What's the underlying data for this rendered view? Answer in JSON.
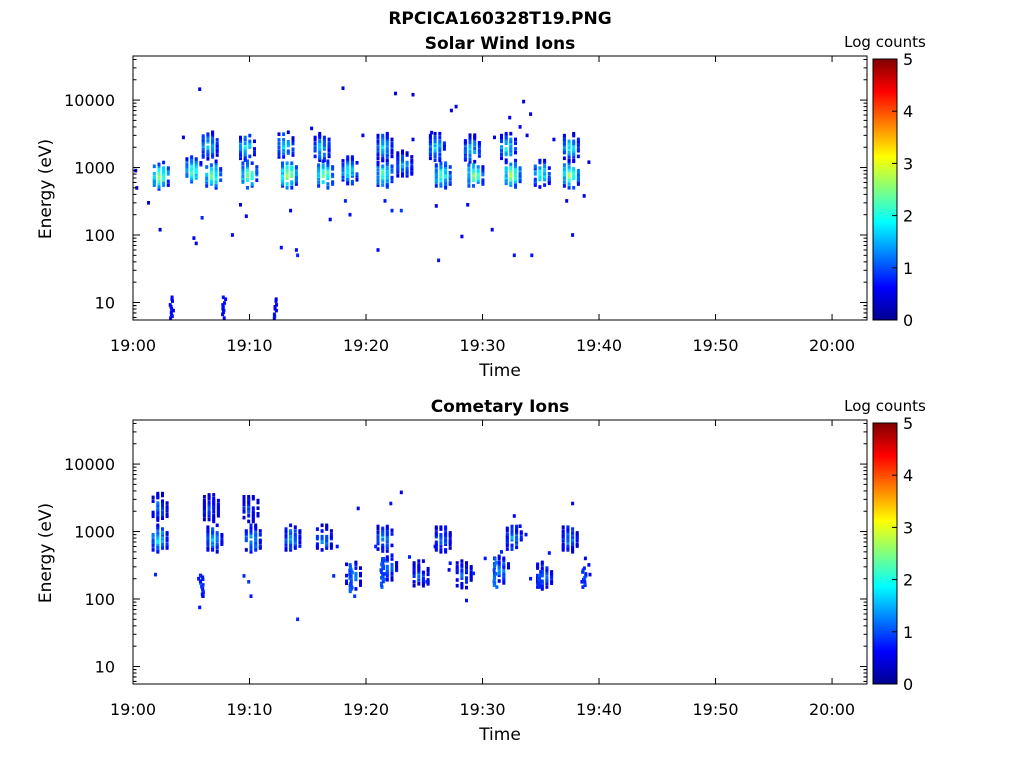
{
  "figure_title": "RPCICA160328T19.PNG",
  "colors": {
    "background": "#ffffff",
    "axis": "#000000",
    "colormap": "jet"
  },
  "chart_data": [
    {
      "type": "heatmap",
      "title": "Solar Wind Ions",
      "xlabel": "Time",
      "ylabel": "Energy (eV)",
      "x_range": [
        "19:00",
        "20:03"
      ],
      "y_range": [
        5.5,
        45000
      ],
      "y_scale": "log",
      "x_ticks": [
        "19:00",
        "19:10",
        "19:20",
        "19:30",
        "19:40",
        "19:50",
        "20:00"
      ],
      "y_ticks": [
        "10",
        "100",
        "1000",
        "10000"
      ],
      "grid": false,
      "colorbar": {
        "label": "Log counts",
        "min": 0,
        "max": 5,
        "ticks": [
          "0",
          "1",
          "2",
          "3",
          "4",
          "5"
        ]
      },
      "clusters": [
        {
          "t": 2.2,
          "e": 750,
          "peak": 2.8
        },
        {
          "t": 5.0,
          "e": 900,
          "peak": 2.4
        },
        {
          "t": 6.7,
          "e": 780,
          "peak": 2.6
        },
        {
          "t": 6.4,
          "e": 2100,
          "peak": 1.9
        },
        {
          "t": 9.8,
          "e": 780,
          "peak": 2.7
        },
        {
          "t": 9.6,
          "e": 2000,
          "peak": 2.0
        },
        {
          "t": 13.2,
          "e": 780,
          "peak": 3.0
        },
        {
          "t": 12.9,
          "e": 2100,
          "peak": 1.9
        },
        {
          "t": 16.3,
          "e": 780,
          "peak": 2.8
        },
        {
          "t": 16.0,
          "e": 2000,
          "peak": 1.8
        },
        {
          "t": 18.4,
          "e": 900,
          "peak": 2.1
        },
        {
          "t": 21.4,
          "e": 800,
          "peak": 2.4
        },
        {
          "t": 21.4,
          "e": 2000,
          "peak": 1.9
        },
        {
          "t": 23.1,
          "e": 1100,
          "peak": 1.6
        },
        {
          "t": 26.4,
          "e": 780,
          "peak": 2.5
        },
        {
          "t": 25.9,
          "e": 2000,
          "peak": 1.8
        },
        {
          "t": 29.2,
          "e": 780,
          "peak": 2.7
        },
        {
          "t": 28.9,
          "e": 1900,
          "peak": 1.8
        },
        {
          "t": 32.4,
          "e": 800,
          "peak": 2.9
        },
        {
          "t": 32.0,
          "e": 2000,
          "peak": 2.1
        },
        {
          "t": 34.9,
          "e": 800,
          "peak": 2.2
        },
        {
          "t": 37.4,
          "e": 780,
          "peak": 2.8
        },
        {
          "t": 37.4,
          "e": 2000,
          "peak": 2.0
        }
      ],
      "scatter": [
        {
          "t": 0.1,
          "e": 900,
          "v": 0.5
        },
        {
          "t": 0.2,
          "e": 500,
          "v": 0.4
        },
        {
          "t": 1.2,
          "e": 300,
          "v": 0.4
        },
        {
          "t": 2.2,
          "e": 120,
          "v": 0.3
        },
        {
          "t": 4.2,
          "e": 2800,
          "v": 0.4
        },
        {
          "t": 5.6,
          "e": 14500,
          "v": 0.5
        },
        {
          "t": 5.1,
          "e": 90,
          "v": 0.6
        },
        {
          "t": 5.3,
          "e": 75,
          "v": 0.5
        },
        {
          "t": 5.8,
          "e": 180,
          "v": 0.8
        },
        {
          "t": 8.4,
          "e": 100,
          "v": 0.6
        },
        {
          "t": 9.1,
          "e": 280,
          "v": 0.4
        },
        {
          "t": 9.6,
          "e": 190,
          "v": 0.6
        },
        {
          "t": 13.4,
          "e": 230,
          "v": 0.5
        },
        {
          "t": 12.6,
          "e": 65,
          "v": 0.7
        },
        {
          "t": 13.9,
          "e": 60,
          "v": 0.7
        },
        {
          "t": 14.0,
          "e": 50,
          "v": 0.8
        },
        {
          "t": 15.2,
          "e": 3800,
          "v": 0.5
        },
        {
          "t": 16.8,
          "e": 170,
          "v": 0.6
        },
        {
          "t": 17.9,
          "e": 15000,
          "v": 0.4
        },
        {
          "t": 18.1,
          "e": 320,
          "v": 0.8
        },
        {
          "t": 18.5,
          "e": 200,
          "v": 0.7
        },
        {
          "t": 19.6,
          "e": 3000,
          "v": 0.5
        },
        {
          "t": 20.9,
          "e": 60,
          "v": 0.6
        },
        {
          "t": 21.5,
          "e": 320,
          "v": 0.7
        },
        {
          "t": 22.1,
          "e": 230,
          "v": 0.8
        },
        {
          "t": 22.9,
          "e": 230,
          "v": 0.9
        },
        {
          "t": 22.4,
          "e": 12500,
          "v": 0.4
        },
        {
          "t": 23.9,
          "e": 2600,
          "v": 0.5
        },
        {
          "t": 23.9,
          "e": 12000,
          "v": 0.4
        },
        {
          "t": 25.5,
          "e": 3300,
          "v": 0.6
        },
        {
          "t": 25.9,
          "e": 270,
          "v": 0.5
        },
        {
          "t": 26.1,
          "e": 42,
          "v": 0.7
        },
        {
          "t": 27.2,
          "e": 7000,
          "v": 0.4
        },
        {
          "t": 27.6,
          "e": 8000,
          "v": 0.5
        },
        {
          "t": 28.1,
          "e": 95,
          "v": 0.6
        },
        {
          "t": 28.6,
          "e": 280,
          "v": 0.5
        },
        {
          "t": 30.7,
          "e": 120,
          "v": 0.6
        },
        {
          "t": 30.9,
          "e": 2800,
          "v": 0.6
        },
        {
          "t": 32.2,
          "e": 5500,
          "v": 0.5
        },
        {
          "t": 32.6,
          "e": 50,
          "v": 0.7
        },
        {
          "t": 33.4,
          "e": 9500,
          "v": 0.4
        },
        {
          "t": 33.1,
          "e": 4000,
          "v": 0.6
        },
        {
          "t": 33.7,
          "e": 3000,
          "v": 0.5
        },
        {
          "t": 34.0,
          "e": 6200,
          "v": 0.5
        },
        {
          "t": 34.1,
          "e": 50,
          "v": 0.7
        },
        {
          "t": 36.0,
          "e": 2600,
          "v": 0.5
        },
        {
          "t": 37.1,
          "e": 320,
          "v": 0.6
        },
        {
          "t": 37.6,
          "e": 100,
          "v": 0.6
        },
        {
          "t": 39.0,
          "e": 1200,
          "v": 0.5
        },
        {
          "t": 38.6,
          "e": 380,
          "v": 0.5
        }
      ],
      "streaks": [
        {
          "t": 3.2,
          "e_lo": 5.5,
          "e_hi": 12,
          "v": 0.6
        },
        {
          "t": 7.7,
          "e_lo": 5.5,
          "e_hi": 12,
          "v": 0.6
        },
        {
          "t": 12.1,
          "e_lo": 5.5,
          "e_hi": 12,
          "v": 0.6
        }
      ]
    },
    {
      "type": "heatmap",
      "title": "Cometary Ions",
      "xlabel": "Time",
      "ylabel": "Energy (eV)",
      "x_range": [
        "19:00",
        "20:03"
      ],
      "y_range": [
        5.5,
        45000
      ],
      "y_scale": "log",
      "x_ticks": [
        "19:00",
        "19:10",
        "19:20",
        "19:30",
        "19:40",
        "19:50",
        "20:00"
      ],
      "y_ticks": [
        "10",
        "100",
        "1000",
        "10000"
      ],
      "grid": false,
      "colorbar": {
        "label": "Log counts",
        "min": 0,
        "max": 5,
        "ticks": [
          "0",
          "1",
          "2",
          "3",
          "4",
          "5"
        ]
      },
      "clusters": [
        {
          "t": 2.1,
          "e": 780,
          "peak": 1.9
        },
        {
          "t": 2.1,
          "e": 2300,
          "peak": 1.3
        },
        {
          "t": 6.8,
          "e": 780,
          "peak": 1.7
        },
        {
          "t": 6.5,
          "e": 2200,
          "peak": 1.1
        },
        {
          "t": 10.1,
          "e": 780,
          "peak": 1.7
        },
        {
          "t": 9.9,
          "e": 2200,
          "peak": 1.1
        },
        {
          "t": 13.5,
          "e": 780,
          "peak": 1.5
        },
        {
          "t": 16.2,
          "e": 780,
          "peak": 1.4
        },
        {
          "t": 18.7,
          "e": 220,
          "peak": 1.5
        },
        {
          "t": 21.8,
          "e": 300,
          "peak": 1.3
        },
        {
          "t": 21.4,
          "e": 800,
          "peak": 1.5
        },
        {
          "t": 24.5,
          "e": 230,
          "peak": 1.1
        },
        {
          "t": 26.4,
          "e": 780,
          "peak": 1.3
        },
        {
          "t": 28.2,
          "e": 230,
          "peak": 1.1
        },
        {
          "t": 31.4,
          "e": 270,
          "peak": 1.4
        },
        {
          "t": 32.5,
          "e": 800,
          "peak": 1.5
        },
        {
          "t": 35.1,
          "e": 220,
          "peak": 1.3
        },
        {
          "t": 37.3,
          "e": 780,
          "peak": 1.4
        }
      ],
      "scatter": [
        {
          "t": 1.8,
          "e": 230,
          "v": 0.8
        },
        {
          "t": 2.0,
          "e": 3200,
          "v": 0.5
        },
        {
          "t": 5.7,
          "e": 220,
          "v": 0.8
        },
        {
          "t": 5.5,
          "e": 200,
          "v": 0.7
        },
        {
          "t": 5.9,
          "e": 110,
          "v": 0.8
        },
        {
          "t": 5.6,
          "e": 75,
          "v": 0.7
        },
        {
          "t": 9.4,
          "e": 220,
          "v": 0.8
        },
        {
          "t": 9.8,
          "e": 180,
          "v": 0.9
        },
        {
          "t": 10.0,
          "e": 110,
          "v": 0.7
        },
        {
          "t": 14.0,
          "e": 50,
          "v": 0.8
        },
        {
          "t": 17.1,
          "e": 220,
          "v": 0.8
        },
        {
          "t": 17.4,
          "e": 600,
          "v": 0.7
        },
        {
          "t": 18.9,
          "e": 110,
          "v": 0.9
        },
        {
          "t": 19.2,
          "e": 2200,
          "v": 0.6
        },
        {
          "t": 20.7,
          "e": 600,
          "v": 0.8
        },
        {
          "t": 22.0,
          "e": 2600,
          "v": 0.7
        },
        {
          "t": 22.9,
          "e": 3800,
          "v": 0.5
        },
        {
          "t": 23.6,
          "e": 420,
          "v": 0.8
        },
        {
          "t": 25.1,
          "e": 180,
          "v": 0.8
        },
        {
          "t": 25.8,
          "e": 600,
          "v": 0.6
        },
        {
          "t": 27.0,
          "e": 270,
          "v": 0.6
        },
        {
          "t": 27.1,
          "e": 340,
          "v": 0.7
        },
        {
          "t": 28.5,
          "e": 95,
          "v": 0.7
        },
        {
          "t": 29.1,
          "e": 240,
          "v": 0.8
        },
        {
          "t": 30.1,
          "e": 400,
          "v": 0.7
        },
        {
          "t": 31.5,
          "e": 500,
          "v": 0.8
        },
        {
          "t": 32.6,
          "e": 1700,
          "v": 0.6
        },
        {
          "t": 33.1,
          "e": 1200,
          "v": 0.5
        },
        {
          "t": 33.6,
          "e": 900,
          "v": 0.7
        },
        {
          "t": 34.0,
          "e": 200,
          "v": 0.7
        },
        {
          "t": 35.6,
          "e": 480,
          "v": 0.7
        },
        {
          "t": 37.6,
          "e": 2600,
          "v": 0.6
        },
        {
          "t": 38.4,
          "e": 180,
          "v": 0.7
        },
        {
          "t": 38.7,
          "e": 400,
          "v": 0.6
        },
        {
          "t": 39.0,
          "e": 320,
          "v": 0.6
        },
        {
          "t": 39.1,
          "e": 230,
          "v": 0.6
        }
      ],
      "streaks": [
        {
          "t": 5.8,
          "e_lo": 110,
          "e_hi": 230,
          "v": 0.8
        },
        {
          "t": 18.6,
          "e_lo": 130,
          "e_hi": 350,
          "v": 1.0
        },
        {
          "t": 21.3,
          "e_lo": 150,
          "e_hi": 400,
          "v": 1.0
        },
        {
          "t": 31.0,
          "e_lo": 150,
          "e_hi": 400,
          "v": 1.1
        },
        {
          "t": 34.8,
          "e_lo": 150,
          "e_hi": 260,
          "v": 0.9
        },
        {
          "t": 38.6,
          "e_lo": 150,
          "e_hi": 300,
          "v": 0.9
        }
      ]
    }
  ]
}
